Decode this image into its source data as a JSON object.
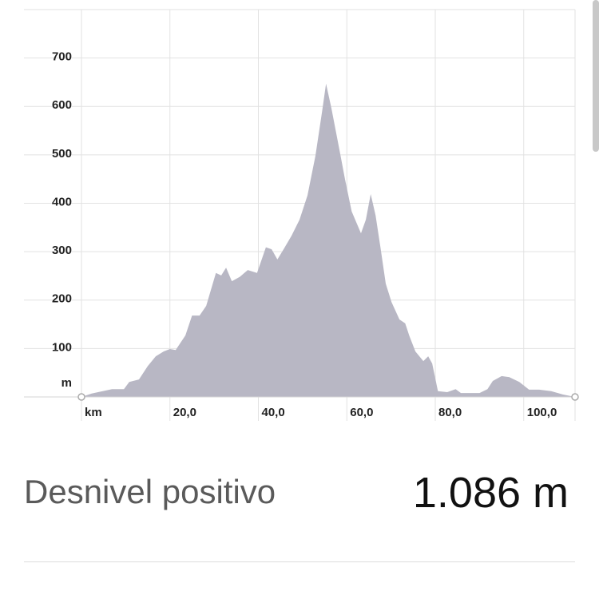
{
  "chart_data": {
    "type": "area",
    "x_unit": "km",
    "y_unit": "m",
    "x": [
      0,
      2.3,
      6.9,
      9.6,
      10.8,
      13.0,
      15.0,
      16.8,
      18.6,
      20.0,
      21.3,
      23.5,
      25.0,
      26.7,
      28.2,
      30.4,
      31.6,
      32.7,
      34.0,
      35.8,
      37.6,
      39.7,
      41.7,
      43.0,
      44.3,
      45.7,
      47.5,
      49.3,
      51.1,
      52.9,
      54.4,
      55.3,
      56.5,
      58.4,
      59.6,
      61.1,
      63.2,
      64.3,
      65.4,
      66.5,
      67.6,
      68.8,
      70.1,
      71.9,
      73.2,
      74.1,
      75.5,
      77.3,
      78.4,
      79.3,
      80.6,
      82.7,
      84.6,
      85.8,
      90.0,
      91.8,
      93.0,
      95.0,
      96.7,
      99.0,
      101.2,
      103.5,
      106.2,
      108.9,
      111.6
    ],
    "values": [
      0,
      7,
      16,
      16,
      31,
      36,
      64,
      84,
      94,
      99,
      97,
      127,
      168,
      168,
      188,
      256,
      251,
      267,
      239,
      248,
      262,
      256,
      309,
      305,
      284,
      305,
      333,
      366,
      416,
      498,
      589,
      647,
      597,
      507,
      449,
      383,
      338,
      366,
      419,
      375,
      309,
      234,
      196,
      160,
      152,
      127,
      94,
      74,
      84,
      69,
      12,
      10,
      16,
      8,
      8,
      16,
      33,
      43,
      41,
      31,
      15,
      15,
      12,
      5,
      0
    ],
    "color": "#b8b7c4",
    "xlim": [
      0,
      111.6
    ],
    "ylim": [
      0,
      800
    ],
    "xticks": [
      {
        "value": 20,
        "label": "20,0"
      },
      {
        "value": 40,
        "label": "40,0"
      },
      {
        "value": 60,
        "label": "60,0"
      },
      {
        "value": 80,
        "label": "80,0"
      },
      {
        "value": 100,
        "label": "100,0"
      }
    ],
    "yticks": [
      100,
      200,
      300,
      400,
      500,
      600,
      700
    ],
    "grid": true
  },
  "stats": {
    "label": "Desnivel positivo",
    "value": "1.086 m"
  }
}
